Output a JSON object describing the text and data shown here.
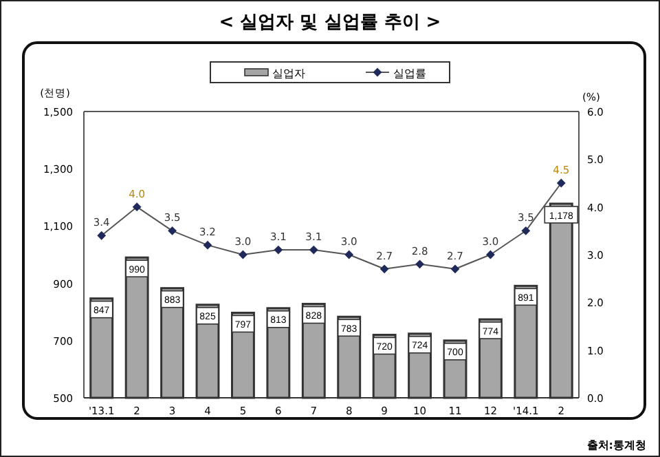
{
  "chart_data": {
    "type": "bar",
    "title": "< 실업자 및 실업률 추이 >",
    "ylabel": "(천명)",
    "y2label": "(%)",
    "categories": [
      "'13.1",
      "2",
      "3",
      "4",
      "5",
      "6",
      "7",
      "8",
      "9",
      "10",
      "11",
      "12",
      "'14.1",
      "2"
    ],
    "series": [
      {
        "name": "실업자",
        "color": "#a6a6a6",
        "values": [
          847,
          990,
          883,
          825,
          797,
          813,
          828,
          783,
          720,
          724,
          700,
          774,
          891,
          1178
        ],
        "value_labels": [
          "847",
          "990",
          "883",
          "825",
          "797",
          "813",
          "828",
          "783",
          "720",
          "724",
          "700",
          "774",
          "891",
          "1,178"
        ]
      },
      {
        "name": "실업률",
        "type": "line",
        "axis": "y2",
        "color": "#1f2a5a",
        "marker": "diamond",
        "values": [
          3.4,
          4.0,
          3.5,
          3.2,
          3.0,
          3.1,
          3.1,
          3.0,
          2.7,
          2.8,
          2.7,
          3.0,
          3.5,
          4.5
        ],
        "value_labels": [
          "3.4",
          "4.0",
          "3.5",
          "3.2",
          "3.0",
          "3.1",
          "3.1",
          "3.0",
          "2.7",
          "2.8",
          "2.7",
          "3.0",
          "3.5",
          "4.5"
        ]
      }
    ],
    "ylim": [
      500,
      1500
    ],
    "yticks": [
      500,
      700,
      900,
      {
        "value": 1100,
        "label": "1,100"
      },
      {
        "value": 1300,
        "label": "1,300"
      },
      {
        "value": 1500,
        "label": "1,500"
      }
    ],
    "y2lim": [
      0,
      6
    ],
    "y2ticks": [
      {
        "value": 0,
        "label": "0.0"
      },
      {
        "value": 1,
        "label": "1.0"
      },
      {
        "value": 2,
        "label": "2.0"
      },
      {
        "value": 3,
        "label": "3.0"
      },
      {
        "value": 4,
        "label": "4.0"
      },
      {
        "value": 5,
        "label": "5.0"
      },
      {
        "value": 6,
        "label": "6.0"
      }
    ],
    "legend": "top",
    "grid": false,
    "annotations": [
      "출처:통계청"
    ]
  }
}
